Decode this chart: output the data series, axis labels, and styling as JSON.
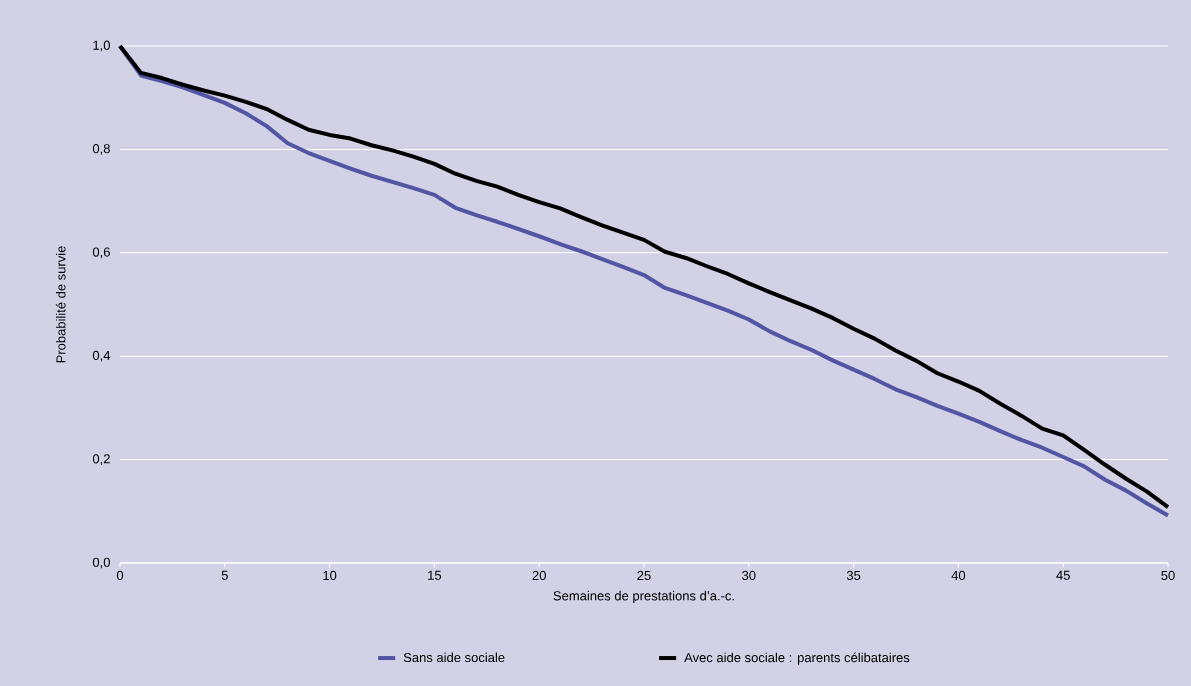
{
  "chart_data": {
    "type": "line",
    "xlabel": "Semaines de prestations d’a.-c.",
    "ylabel": "Probabilité de survie",
    "x": [
      0,
      1,
      2,
      3,
      4,
      5,
      6,
      7,
      8,
      9,
      10,
      11,
      12,
      13,
      14,
      15,
      16,
      17,
      18,
      19,
      20,
      21,
      22,
      23,
      24,
      25,
      26,
      27,
      28,
      29,
      30,
      31,
      32,
      33,
      34,
      35,
      36,
      37,
      38,
      39,
      40,
      41,
      42,
      43,
      44,
      45,
      46,
      47,
      48,
      49,
      50
    ],
    "series": [
      {
        "name": "Sans aide sociale",
        "color": "#5155a4",
        "values": [
          1.0,
          0.943,
          0.932,
          0.92,
          0.905,
          0.89,
          0.87,
          0.845,
          0.812,
          0.793,
          0.778,
          0.763,
          0.749,
          0.737,
          0.725,
          0.712,
          0.687,
          0.673,
          0.66,
          0.646,
          0.632,
          0.617,
          0.603,
          0.588,
          0.573,
          0.557,
          0.532,
          0.518,
          0.503,
          0.488,
          0.471,
          0.448,
          0.429,
          0.412,
          0.392,
          0.374,
          0.356,
          0.336,
          0.321,
          0.304,
          0.289,
          0.273,
          0.255,
          0.238,
          0.223,
          0.205,
          0.187,
          0.161,
          0.14,
          0.115,
          0.092
        ]
      },
      {
        "name": "Avec aide sociale : parents célibataires",
        "color": "#000000",
        "values": [
          1.0,
          0.948,
          0.938,
          0.925,
          0.914,
          0.904,
          0.892,
          0.878,
          0.857,
          0.838,
          0.828,
          0.821,
          0.808,
          0.798,
          0.786,
          0.772,
          0.753,
          0.739,
          0.728,
          0.712,
          0.698,
          0.686,
          0.669,
          0.653,
          0.639,
          0.625,
          0.602,
          0.59,
          0.574,
          0.559,
          0.541,
          0.524,
          0.508,
          0.492,
          0.474,
          0.453,
          0.434,
          0.411,
          0.391,
          0.367,
          0.351,
          0.333,
          0.308,
          0.285,
          0.26,
          0.247,
          0.219,
          0.19,
          0.163,
          0.138,
          0.108
        ]
      }
    ],
    "xlim": [
      0,
      50
    ],
    "xticks": [
      0,
      5,
      10,
      15,
      20,
      25,
      30,
      35,
      40,
      45,
      50
    ],
    "ylim": [
      0,
      1
    ],
    "yticks": [
      {
        "value": 0,
        "label": "0,0"
      },
      {
        "value": 0.2,
        "label": "0,2"
      },
      {
        "value": 0.4,
        "label": "0,4"
      },
      {
        "value": 0.6,
        "label": "0,6"
      },
      {
        "value": 0.8,
        "label": "0,8"
      },
      {
        "value": 1,
        "label": "1,0"
      }
    ],
    "grid": "y",
    "legend": "bottom",
    "marker": "none",
    "line_style": "solid"
  }
}
